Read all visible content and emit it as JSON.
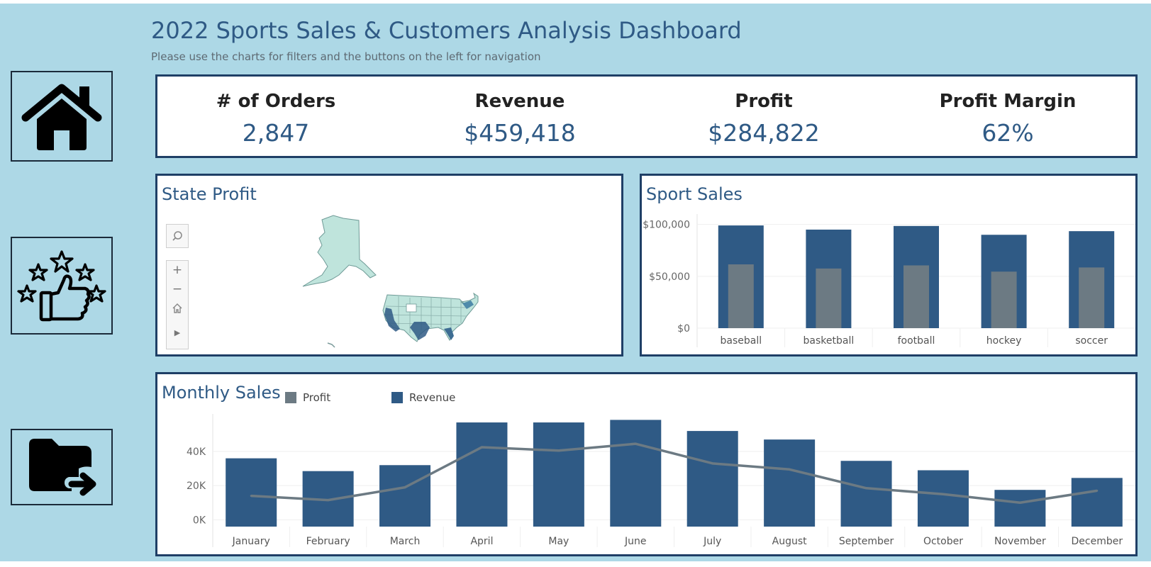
{
  "header": {
    "title": "2022 Sports Sales & Customers Analysis Dashboard",
    "subtitle": "Please use the charts for filters and the buttons on the left for navigation"
  },
  "nav": [
    {
      "name": "home-nav-button",
      "icon": "home-icon"
    },
    {
      "name": "reviews-nav-button",
      "icon": "thumbs-up-stars-icon"
    },
    {
      "name": "export-nav-button",
      "icon": "folder-arrow-icon"
    }
  ],
  "kpis": [
    {
      "label": "# of Orders",
      "value": "2,847"
    },
    {
      "label": "Revenue",
      "value": "$459,418"
    },
    {
      "label": "Profit",
      "value": "$284,822"
    },
    {
      "label": "Profit Margin",
      "value": "62%"
    }
  ],
  "state_profit": {
    "title": "State Profit",
    "tools": [
      "search-icon",
      "zoom-in-icon",
      "zoom-out-icon",
      "home-icon",
      "play-icon"
    ],
    "tool_glyphs": {
      "zoom_in": "+",
      "zoom_out": "−",
      "play": "▶"
    }
  },
  "sport_sales": {
    "title": "Sport Sales"
  },
  "monthly_sales": {
    "title": "Monthly Sales",
    "legend": [
      {
        "label": "Profit",
        "color": "#6c7a83"
      },
      {
        "label": "Revenue",
        "color": "#2f5a85"
      }
    ]
  },
  "colors": {
    "revenue": "#2f5a85",
    "profit": "#6c7a83",
    "panel_border": "#1f3f66",
    "background": "#add8e6"
  },
  "chart_data": [
    {
      "type": "bar",
      "title": "Sport Sales",
      "categories": [
        "baseball",
        "basketball",
        "football",
        "hockey",
        "soccer"
      ],
      "series": [
        {
          "name": "Revenue",
          "values": [
            99000,
            95000,
            98500,
            90000,
            93500
          ]
        },
        {
          "name": "Profit",
          "values": [
            61500,
            57500,
            60500,
            54500,
            58500
          ]
        }
      ],
      "yticks": [
        "$0",
        "$50,000",
        "$100,000"
      ],
      "ytick_values": [
        0,
        50000,
        100000
      ],
      "ylim": [
        0,
        110000
      ],
      "grid": true
    },
    {
      "type": "bar",
      "title": "Monthly Sales",
      "categories": [
        "January",
        "February",
        "March",
        "April",
        "May",
        "June",
        "July",
        "August",
        "September",
        "October",
        "November",
        "December"
      ],
      "series": [
        {
          "name": "Revenue",
          "values": [
            36000,
            28500,
            32000,
            57000,
            57000,
            58500,
            52000,
            47000,
            34500,
            29000,
            17500,
            24500
          ]
        },
        {
          "name": "Profit",
          "values": [
            14000,
            11500,
            19000,
            42500,
            40500,
            44500,
            33000,
            29500,
            18500,
            15000,
            10000,
            17000
          ]
        }
      ],
      "line_series": "Profit",
      "yticks": [
        "0K",
        "20K",
        "40K"
      ],
      "ytick_values": [
        0,
        20000,
        40000
      ],
      "ylim": [
        -4000,
        62000
      ],
      "grid": true
    }
  ]
}
